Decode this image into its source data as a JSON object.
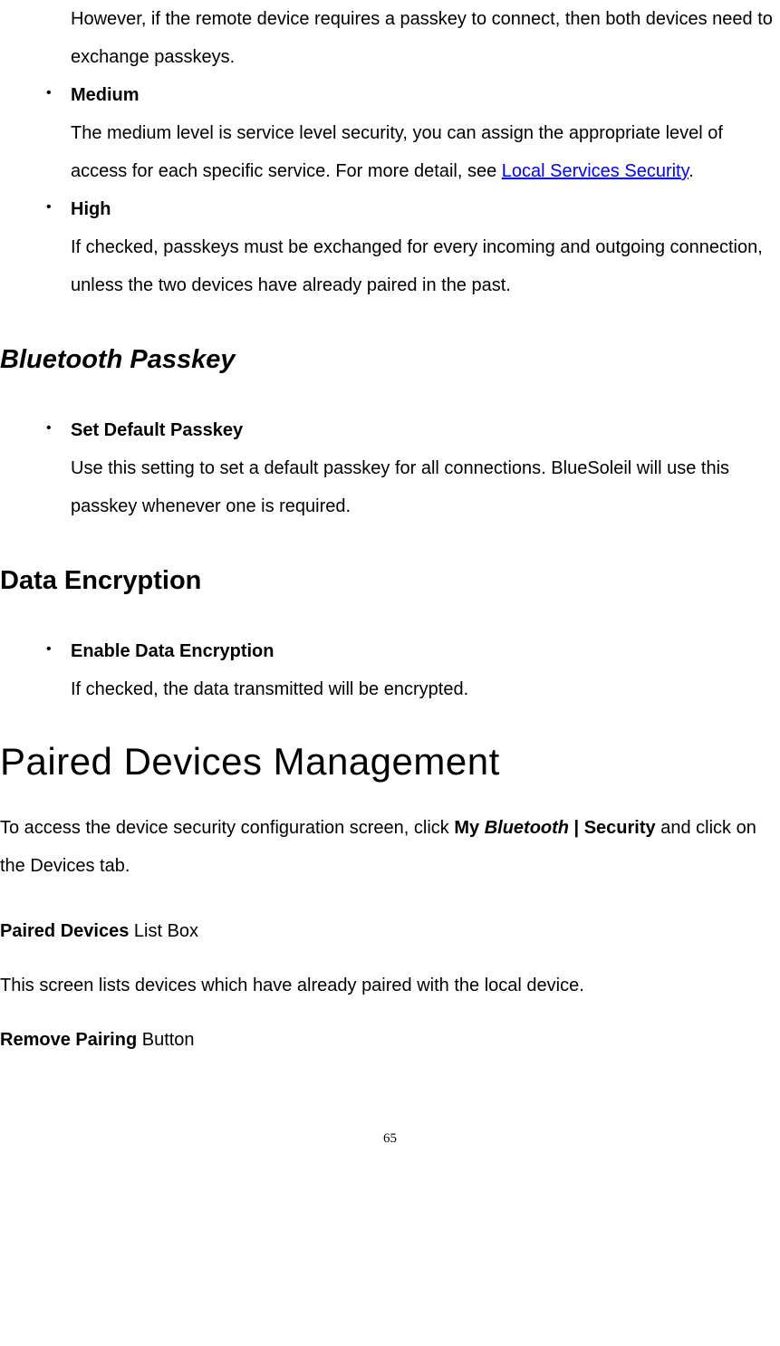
{
  "securityLevels": {
    "lowContinuation": "However, if the remote device requires a passkey to connect, then both devices need to exchange passkeys.",
    "medium": {
      "label": "Medium",
      "textBefore": "The medium level is service level security, you can assign the appropriate level of access for each specific service. For more detail, see ",
      "linkText": "Local Services Security",
      "textAfter": "."
    },
    "high": {
      "label": "High",
      "text": "If checked, passkeys must be exchanged for every incoming and outgoing connection, unless the two devices have already paired in the past."
    }
  },
  "passkeySection": {
    "heading": "Bluetooth Passkey",
    "item": {
      "label": "Set Default Passkey",
      "text": "Use this setting to set a default passkey for all connections. BlueSoleil will use this passkey whenever one is required."
    }
  },
  "encryptionSection": {
    "heading": "Data Encryption",
    "item": {
      "label": "Enable Data Encryption",
      "text": "If checked, the data transmitted will be encrypted."
    }
  },
  "pairedDevices": {
    "heading": "Paired Devices Management",
    "intro": {
      "prefix": "To access the device security configuration screen, click ",
      "boldMy": "My ",
      "boldItalicBluetooth": "Bluetooth",
      "boldBar": " | Security",
      "suffix": " and click on the Devices tab."
    },
    "listBox": {
      "boldLabel": "Paired Devices",
      "suffix": " List Box"
    },
    "listBoxText": "This screen lists devices which have already paired with the local device.",
    "removeButton": {
      "boldLabel": "Remove Pairing",
      "suffix": " Button"
    }
  },
  "pageNumber": "65"
}
